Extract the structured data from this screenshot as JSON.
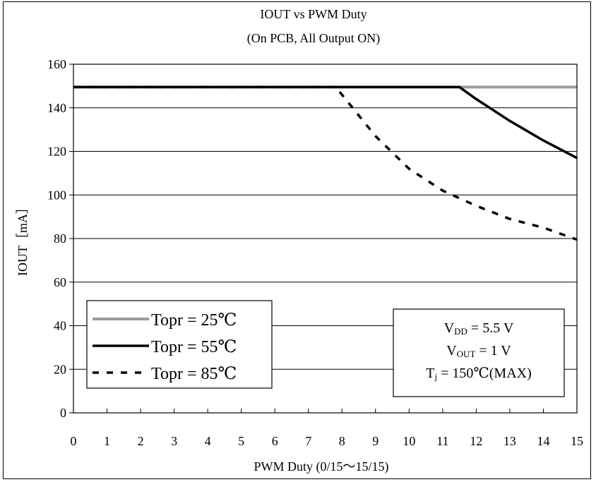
{
  "chart_data": {
    "type": "line",
    "title": "IOUT vs PWM Duty",
    "subtitle": "(On PCB, All Output ON)",
    "xlabel": "PWM Duty  (0/15～15/15)",
    "ylabel": "IOUT［mA］",
    "xlim": [
      0,
      15
    ],
    "ylim": [
      0,
      160
    ],
    "x_ticks": [
      "0",
      "1",
      "2",
      "3",
      "4",
      "5",
      "6",
      "7",
      "8",
      "9",
      "10",
      "11",
      "12",
      "13",
      "14",
      "15"
    ],
    "y_ticks": [
      "0",
      "20",
      "40",
      "60",
      "80",
      "100",
      "120",
      "140",
      "160"
    ],
    "grid": "horizontal",
    "legend_position": "bottom-left",
    "series": [
      {
        "name": "Topr = 25℃",
        "style": "gray",
        "color": "#9a9a9a",
        "x": [
          0,
          11.5,
          15
        ],
        "y": [
          149.5,
          149.5,
          149.5
        ]
      },
      {
        "name": "Topr = 55℃",
        "style": "solid",
        "color": "#000000",
        "x": [
          0,
          11.5,
          12,
          13,
          14,
          15
        ],
        "y": [
          149.5,
          149.5,
          144,
          134,
          125,
          117
        ]
      },
      {
        "name": "Topr = 85℃",
        "style": "dashed",
        "color": "#000000",
        "x": [
          0,
          7.8,
          8,
          9,
          10,
          11,
          12,
          13,
          14,
          15
        ],
        "y": [
          149.5,
          149.5,
          146,
          127,
          112,
          102,
          95,
          89,
          85,
          79.5
        ]
      }
    ],
    "conditions": [
      {
        "main": "V",
        "sub": "DD",
        "rest": " = 5.5 V"
      },
      {
        "main": "V",
        "sub": "OUT",
        "rest": " = 1 V"
      },
      {
        "main": "T",
        "sub": "j",
        "rest": " = 150℃(MAX)"
      }
    ]
  }
}
